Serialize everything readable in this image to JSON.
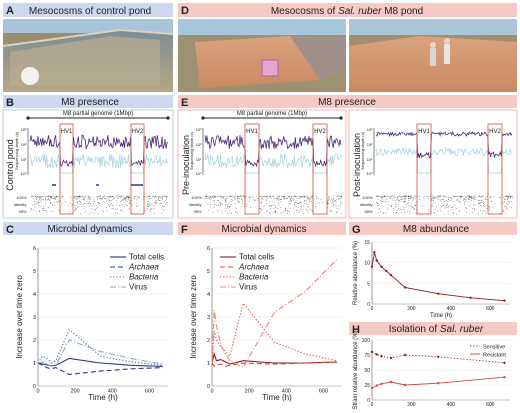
{
  "panels": {
    "A": {
      "letter": "A",
      "title": "Mesocosms of control pond"
    },
    "B": {
      "letter": "B",
      "title": "M8 presence",
      "genome_label": "M8 partial genome (1Mbp)",
      "row_label": "Control pond"
    },
    "C": {
      "letter": "C",
      "title": "Microbial dynamics"
    },
    "D": {
      "letter": "D",
      "title_prefix": "Mesocosms of ",
      "title_italic": "Sal. ruber",
      "title_suffix": " M8 pond"
    },
    "E": {
      "letter": "E",
      "title": "M8 presence",
      "genome_label": "M8 partial genome (1Mbp)",
      "row_label_left": "Pre-inoculation",
      "row_label_right": "Post-inoculation"
    },
    "F": {
      "letter": "F",
      "title": "Microbial dynamics"
    },
    "G": {
      "letter": "G",
      "title": "M8 abundance"
    },
    "H": {
      "letter": "H",
      "title_prefix": "Isolation of ",
      "title_italic": "Sal. ruber"
    }
  },
  "hv_labels": [
    "HV1",
    "HV2"
  ],
  "depth_axis_label": "Sequencing depth (x)",
  "depth_ticks": [
    "10³",
    "10²",
    "10¹",
    "10⁰"
  ],
  "identity_label": "Identity",
  "identity_ticks": [
    "100%",
    "95%"
  ],
  "colors": {
    "header_blue": "#cbd8ee",
    "header_red": "#f6c9c4",
    "blue_box": "#b8cfe2",
    "red_box": "#f2b7b2",
    "dark_blue": "#2e3a7a",
    "mid_blue": "#4d6fa8",
    "light_teal": "#9fd3dc",
    "purple": "#4b2a7a",
    "dark_red": "#8b1e1e",
    "red": "#d24b3e",
    "salmon": "#e8897f",
    "grey": "#444444"
  },
  "chart_data": [
    {
      "id": "C",
      "type": "line",
      "xlabel": "Time (h)",
      "ylabel": "Increase over time zero",
      "xlim": [
        0,
        700
      ],
      "ylim": [
        0,
        6
      ],
      "xticks": [
        0,
        200,
        400,
        600
      ],
      "yticks": [
        0,
        1,
        2,
        3,
        4,
        5,
        6
      ],
      "legend_position": "top-right",
      "series": [
        {
          "name": "Total cells",
          "style": "solid",
          "x": [
            0,
            24,
            48,
            72,
            96,
            168,
            336,
            500,
            672
          ],
          "y": [
            1,
            0.95,
            0.92,
            0.88,
            0.9,
            1.2,
            1.0,
            0.9,
            0.85
          ]
        },
        {
          "name": "Archaea",
          "style": "dashed",
          "x": [
            0,
            24,
            48,
            72,
            96,
            168,
            336,
            500,
            672
          ],
          "y": [
            1,
            0.9,
            0.8,
            0.75,
            0.8,
            0.5,
            0.65,
            0.75,
            0.8
          ]
        },
        {
          "name": "Bacteria",
          "style": "dotted",
          "x": [
            0,
            24,
            48,
            72,
            96,
            168,
            336,
            500,
            672
          ],
          "y": [
            1,
            1.3,
            1.2,
            1.0,
            1.1,
            2.45,
            1.3,
            1.05,
            0.9
          ]
        },
        {
          "name": "Virus",
          "style": "dashdot",
          "x": [
            0,
            24,
            48,
            72,
            96,
            168,
            336,
            500,
            672
          ],
          "y": [
            1,
            1.05,
            0.95,
            0.85,
            0.9,
            2.0,
            1.5,
            1.2,
            0.95
          ]
        }
      ]
    },
    {
      "id": "F",
      "type": "line",
      "xlabel": "Time (h)",
      "ylabel": "Increase over time zero",
      "xlim": [
        0,
        700
      ],
      "ylim": [
        0,
        6
      ],
      "xticks": [
        0,
        200,
        400,
        600
      ],
      "yticks": [
        0,
        1,
        2,
        3,
        4,
        5,
        6
      ],
      "legend_position": "top-left",
      "series": [
        {
          "name": "Total cells",
          "style": "solid",
          "x": [
            0,
            12,
            24,
            48,
            72,
            96,
            168,
            336,
            500,
            672
          ],
          "y": [
            1,
            1.4,
            1.1,
            1.15,
            1.05,
            0.95,
            1.1,
            1.0,
            1.0,
            1.05
          ]
        },
        {
          "name": "Archaea",
          "style": "dashed",
          "x": [
            0,
            12,
            24,
            48,
            72,
            96,
            168,
            336,
            500,
            672
          ],
          "y": [
            1,
            0.85,
            0.9,
            0.95,
            0.85,
            0.9,
            1.0,
            0.95,
            1.0,
            1.05
          ]
        },
        {
          "name": "Bacteria",
          "style": "dotted",
          "x": [
            0,
            12,
            24,
            48,
            72,
            96,
            168,
            336,
            500,
            672
          ],
          "y": [
            1,
            2.4,
            2.0,
            1.7,
            1.5,
            1.3,
            3.6,
            1.9,
            1.4,
            1.1
          ]
        },
        {
          "name": "Virus",
          "style": "dashdot",
          "x": [
            0,
            12,
            24,
            48,
            72,
            96,
            168,
            336,
            500,
            672
          ],
          "y": [
            1,
            3.3,
            2.6,
            1.8,
            1.4,
            1.1,
            0.8,
            3.2,
            4.1,
            5.5
          ]
        }
      ]
    },
    {
      "id": "G",
      "type": "line",
      "xlabel": "Time (h)",
      "ylabel": "Relative abundance (%)",
      "xlim": [
        0,
        700
      ],
      "ylim": [
        0,
        15
      ],
      "xticks": [
        0,
        200,
        400,
        600
      ],
      "yticks": [
        0,
        5,
        10,
        15
      ],
      "series": [
        {
          "name": "",
          "style": "solid",
          "x": [
            0,
            12,
            24,
            48,
            72,
            96,
            168,
            336,
            500,
            672
          ],
          "y": [
            9,
            12.5,
            10.5,
            9,
            8,
            7,
            4,
            2.5,
            1.5,
            0.8
          ]
        }
      ]
    },
    {
      "id": "H",
      "type": "line",
      "xlabel": "",
      "ylabel": "Strain relative abundance (%)",
      "xlim": [
        0,
        700
      ],
      "ylim": [
        0,
        100
      ],
      "xticks": [
        0,
        200,
        400,
        600
      ],
      "yticks": [
        0,
        25,
        50,
        75,
        100
      ],
      "legend_position": "top-right",
      "series": [
        {
          "name": "Sensitive",
          "style": "dotted",
          "x": [
            0,
            24,
            48,
            96,
            168,
            336,
            672
          ],
          "y": [
            80,
            76,
            73,
            70,
            75,
            72,
            62
          ]
        },
        {
          "name": "Resistant",
          "style": "solid",
          "x": [
            0,
            24,
            48,
            96,
            168,
            336,
            672
          ],
          "y": [
            20,
            24,
            27,
            30,
            25,
            28,
            38
          ]
        }
      ]
    }
  ]
}
